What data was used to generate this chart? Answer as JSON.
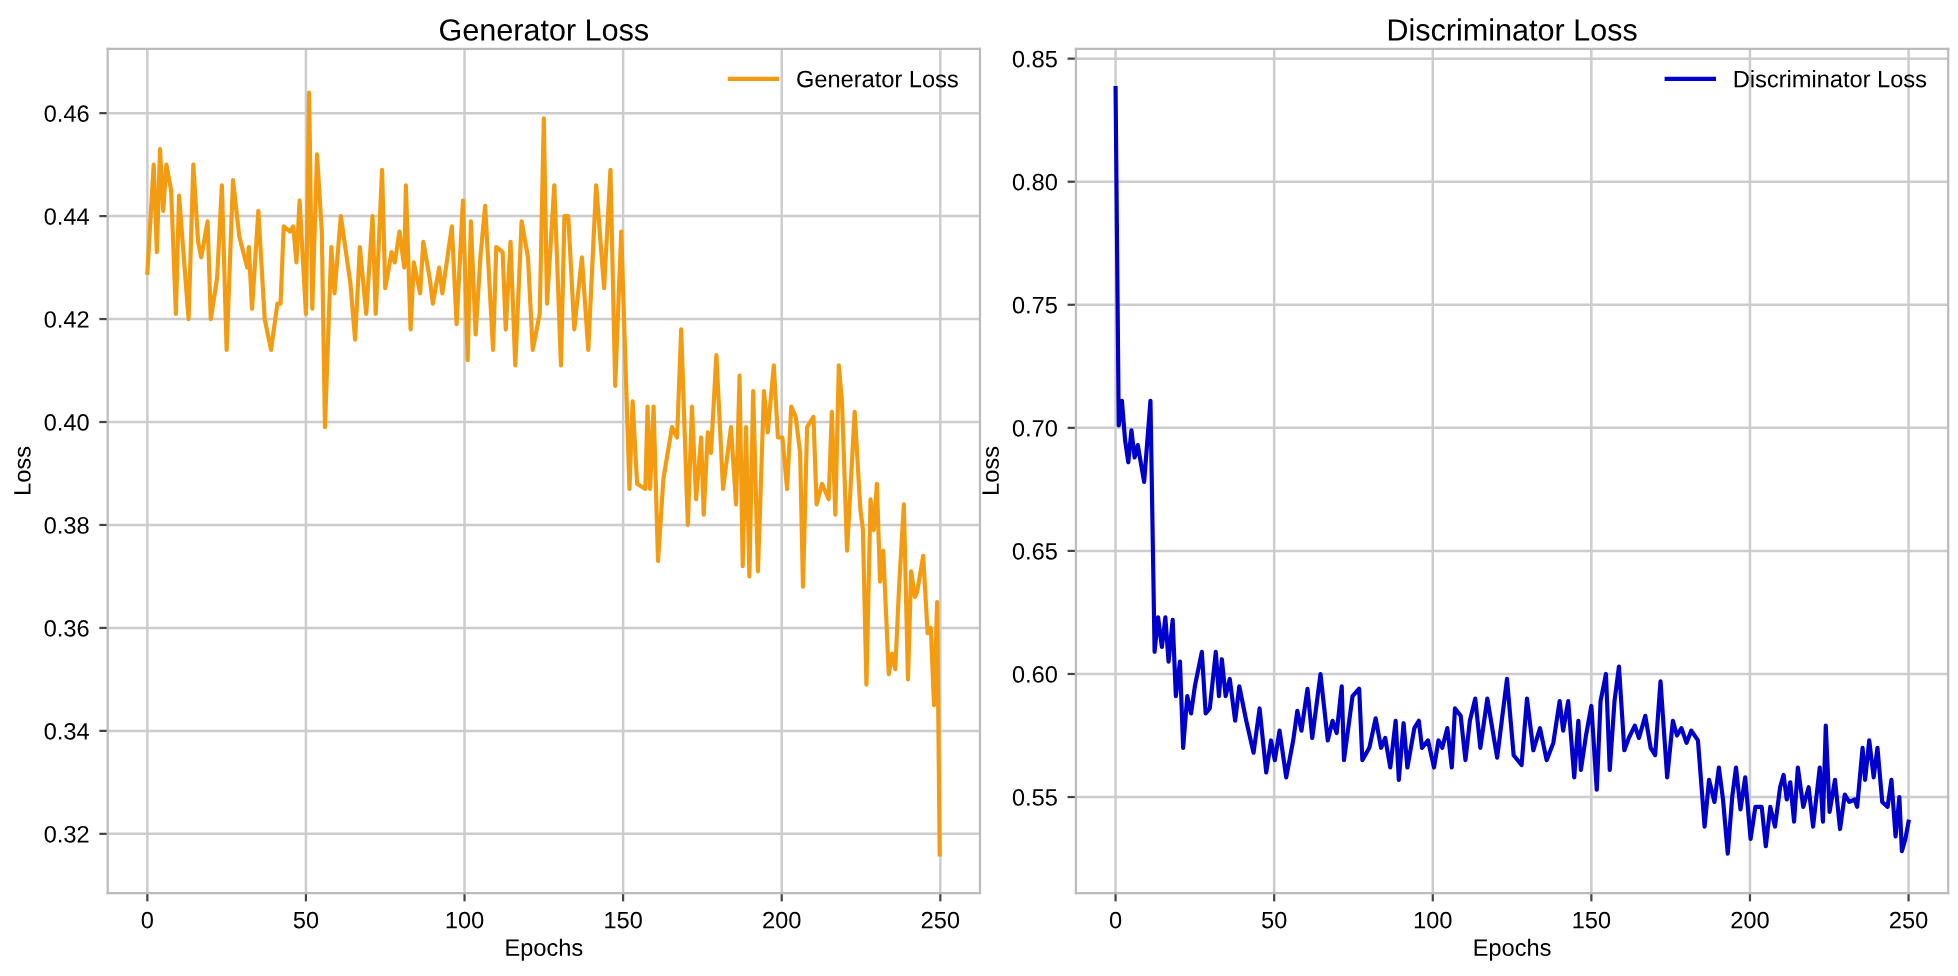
{
  "chart_data": [
    {
      "type": "line",
      "title": "Generator Loss",
      "xlabel": "Epochs",
      "ylabel": "Loss",
      "legend": "top right",
      "grid": true,
      "xlim": [
        -12.5,
        262.5
      ],
      "ylim": [
        0.3085,
        0.4725
      ],
      "xticks": [
        0,
        50,
        100,
        150,
        200,
        250
      ],
      "yticks": [
        0.32,
        0.34,
        0.36,
        0.38,
        {
          "value": 0.4,
          "label": "0.40"
        },
        0.42,
        0.44,
        0.46
      ],
      "series": [
        {
          "name": "Generator Loss",
          "color": "#f39c12",
          "x": [
            0,
            2,
            3,
            4,
            5,
            6,
            7.5,
            9,
            10,
            13,
            14.5,
            16,
            17,
            19,
            20,
            22,
            23.5,
            25,
            27,
            29,
            31.5,
            32,
            33,
            35,
            37,
            39,
            41,
            42,
            43,
            45,
            46,
            47,
            48,
            50,
            51,
            52,
            53.5,
            55,
            56,
            58,
            59,
            61,
            64,
            65.5,
            67,
            69,
            71,
            72,
            74,
            75,
            77,
            78,
            79.5,
            81,
            81.5,
            83,
            84,
            86,
            87,
            89,
            90,
            92,
            93,
            96,
            97.5,
            99.5,
            101,
            102,
            103.5,
            105,
            106.5,
            109,
            110,
            112,
            113,
            114.5,
            116,
            118,
            120,
            121.5,
            123.7,
            125,
            126,
            128.3,
            130.4,
            131.5,
            132.7,
            134.6,
            137,
            139,
            141.5,
            144,
            146,
            147.5,
            149.4,
            152,
            153,
            154.4,
            157,
            157.7,
            158.5,
            159.6,
            161,
            162.7,
            165.4,
            167,
            168.3,
            170.4,
            171.7,
            173,
            174.6,
            175.4,
            176.7,
            177.7,
            179.4,
            181.5,
            184,
            185.6,
            186.7,
            187.7,
            188.75,
            189.8,
            191,
            192.5,
            194.4,
            195.6,
            197.5,
            198.8,
            200.2,
            201.7,
            203,
            204.4,
            205.8,
            206.7,
            208,
            210,
            211,
            212.7,
            214.8,
            215.8,
            216.9,
            218,
            219,
            220.6,
            223,
            224.8,
            225.6,
            226.7,
            228,
            229,
            230,
            231,
            232,
            233.75,
            234.8,
            235.8,
            237,
            238.5,
            239.8,
            240.8,
            242,
            242.7,
            244.6,
            246,
            247,
            248,
            249,
            249.8
          ],
          "values": [
            0.429,
            0.45,
            0.433,
            0.453,
            0.441,
            0.45,
            0.445,
            0.421,
            0.444,
            0.42,
            0.45,
            0.435,
            0.432,
            0.439,
            0.42,
            0.428,
            0.446,
            0.414,
            0.447,
            0.436,
            0.43,
            0.434,
            0.422,
            0.441,
            0.42,
            0.414,
            0.423,
            0.423,
            0.438,
            0.437,
            0.438,
            0.431,
            0.443,
            0.421,
            0.464,
            0.422,
            0.452,
            0.437,
            0.399,
            0.434,
            0.425,
            0.44,
            0.427,
            0.416,
            0.434,
            0.421,
            0.44,
            0.421,
            0.449,
            0.426,
            0.433,
            0.431,
            0.437,
            0.43,
            0.446,
            0.418,
            0.431,
            0.425,
            0.435,
            0.428,
            0.423,
            0.43,
            0.425,
            0.438,
            0.419,
            0.443,
            0.412,
            0.439,
            0.417,
            0.432,
            0.442,
            0.414,
            0.434,
            0.433,
            0.418,
            0.435,
            0.411,
            0.439,
            0.432,
            0.414,
            0.421,
            0.459,
            0.423,
            0.446,
            0.411,
            0.44,
            0.44,
            0.418,
            0.432,
            0.414,
            0.446,
            0.426,
            0.449,
            0.407,
            0.437,
            0.387,
            0.404,
            0.388,
            0.387,
            0.403,
            0.387,
            0.403,
            0.373,
            0.389,
            0.399,
            0.397,
            0.418,
            0.38,
            0.403,
            0.385,
            0.397,
            0.382,
            0.398,
            0.394,
            0.413,
            0.387,
            0.399,
            0.384,
            0.409,
            0.372,
            0.399,
            0.37,
            0.406,
            0.371,
            0.406,
            0.398,
            0.411,
            0.397,
            0.397,
            0.387,
            0.403,
            0.401,
            0.394,
            0.368,
            0.399,
            0.401,
            0.384,
            0.388,
            0.385,
            0.402,
            0.382,
            0.411,
            0.404,
            0.375,
            0.402,
            0.383,
            0.379,
            0.349,
            0.385,
            0.379,
            0.388,
            0.369,
            0.375,
            0.351,
            0.355,
            0.352,
            0.368,
            0.384,
            0.35,
            0.371,
            0.366,
            0.367,
            0.374,
            0.359,
            0.36,
            0.345,
            0.365,
            0.316
          ]
        }
      ]
    },
    {
      "type": "line",
      "title": "Discriminator Loss",
      "xlabel": "Epochs",
      "ylabel": "Loss",
      "legend": "top right",
      "grid": true,
      "xlim": [
        -12.5,
        262.5
      ],
      "ylim": [
        0.511,
        0.854
      ],
      "xticks": [
        0,
        50,
        100,
        150,
        200,
        250
      ],
      "yticks": [
        0.55,
        {
          "value": 0.6,
          "label": "0.60"
        },
        0.65,
        {
          "value": 0.7,
          "label": "0.70"
        },
        0.75,
        {
          "value": 0.8,
          "label": "0.80"
        },
        0.85
      ],
      "series": [
        {
          "name": "Discriminator Loss",
          "color": "#0000cd",
          "x": [
            0,
            1,
            2,
            3,
            4,
            5,
            6,
            7,
            9,
            11,
            12.3,
            13.4,
            14.6,
            15.7,
            16.7,
            18,
            19,
            20.3,
            21.3,
            22.6,
            23.8,
            25,
            27.2,
            28.4,
            29.7,
            31.6,
            32.6,
            33.5,
            34.7,
            36,
            37.7,
            39,
            41.2,
            43.5,
            45.4,
            47.5,
            49,
            50.2,
            51.7,
            53.8,
            56,
            57.3,
            58.6,
            60.5,
            62,
            64.6,
            66.9,
            68.4,
            69.7,
            71.3,
            72,
            74.7,
            76.8,
            77.8,
            80,
            82,
            83.7,
            85,
            86.6,
            88.3,
            89.3,
            90.8,
            92,
            94.2,
            95.6,
            96.6,
            98.5,
            100.4,
            101.8,
            103,
            104.6,
            106,
            107,
            108.8,
            110.3,
            111.7,
            113.4,
            115,
            117.2,
            120.3,
            123.4,
            125.5,
            128,
            129.7,
            131.7,
            133.8,
            135.9,
            138,
            140,
            141.1,
            142.7,
            144.6,
            145.9,
            146.7,
            148.3,
            150,
            151.7,
            152.9,
            154.6,
            155.8,
            157.3,
            158.7,
            160.4,
            161.8,
            163.7,
            165,
            167,
            168.7,
            170.1,
            171.8,
            173.9,
            175.7,
            177,
            178.4,
            180,
            181.5,
            183.6,
            185.7,
            187.1,
            188.8,
            190.2,
            191.5,
            193,
            194.4,
            195.6,
            197,
            198.5,
            200.2,
            201.7,
            203.7,
            205,
            206.4,
            207.9,
            209.5,
            210.6,
            211.6,
            212.7,
            213.9,
            215.1,
            216.8,
            218.5,
            219.9,
            222,
            223,
            223.9,
            225.1,
            226.8,
            228.4,
            229.9,
            231.3,
            233,
            233.8,
            235.5,
            236.3,
            237.6,
            239,
            240.2,
            241.7,
            243.4,
            244.6,
            245.9,
            247.1,
            247.9,
            249,
            250
          ],
          "values": [
            0.838,
            0.701,
            0.711,
            0.695,
            0.686,
            0.699,
            0.688,
            0.693,
            0.678,
            0.711,
            0.609,
            0.623,
            0.611,
            0.623,
            0.605,
            0.622,
            0.591,
            0.605,
            0.57,
            0.591,
            0.584,
            0.595,
            0.609,
            0.584,
            0.586,
            0.609,
            0.591,
            0.606,
            0.591,
            0.598,
            0.581,
            0.595,
            0.581,
            0.568,
            0.586,
            0.56,
            0.573,
            0.565,
            0.577,
            0.558,
            0.573,
            0.585,
            0.577,
            0.594,
            0.574,
            0.6,
            0.573,
            0.581,
            0.576,
            0.595,
            0.565,
            0.591,
            0.594,
            0.565,
            0.57,
            0.582,
            0.57,
            0.574,
            0.562,
            0.581,
            0.557,
            0.58,
            0.562,
            0.578,
            0.581,
            0.57,
            0.573,
            0.562,
            0.573,
            0.57,
            0.578,
            0.562,
            0.586,
            0.583,
            0.565,
            0.581,
            0.59,
            0.57,
            0.59,
            0.566,
            0.598,
            0.567,
            0.563,
            0.59,
            0.569,
            0.578,
            0.565,
            0.572,
            0.589,
            0.577,
            0.589,
            0.558,
            0.581,
            0.561,
            0.575,
            0.587,
            0.553,
            0.589,
            0.6,
            0.561,
            0.589,
            0.603,
            0.569,
            0.574,
            0.579,
            0.574,
            0.583,
            0.57,
            0.567,
            0.597,
            0.558,
            0.581,
            0.575,
            0.578,
            0.572,
            0.577,
            0.573,
            0.538,
            0.557,
            0.548,
            0.562,
            0.549,
            0.527,
            0.55,
            0.562,
            0.545,
            0.558,
            0.533,
            0.546,
            0.546,
            0.53,
            0.546,
            0.538,
            0.554,
            0.559,
            0.549,
            0.556,
            0.54,
            0.562,
            0.546,
            0.554,
            0.538,
            0.562,
            0.54,
            0.579,
            0.544,
            0.557,
            0.537,
            0.551,
            0.548,
            0.549,
            0.546,
            0.57,
            0.557,
            0.573,
            0.558,
            0.57,
            0.548,
            0.546,
            0.557,
            0.534,
            0.55,
            0.528,
            0.533,
            0.54
          ]
        }
      ]
    }
  ]
}
